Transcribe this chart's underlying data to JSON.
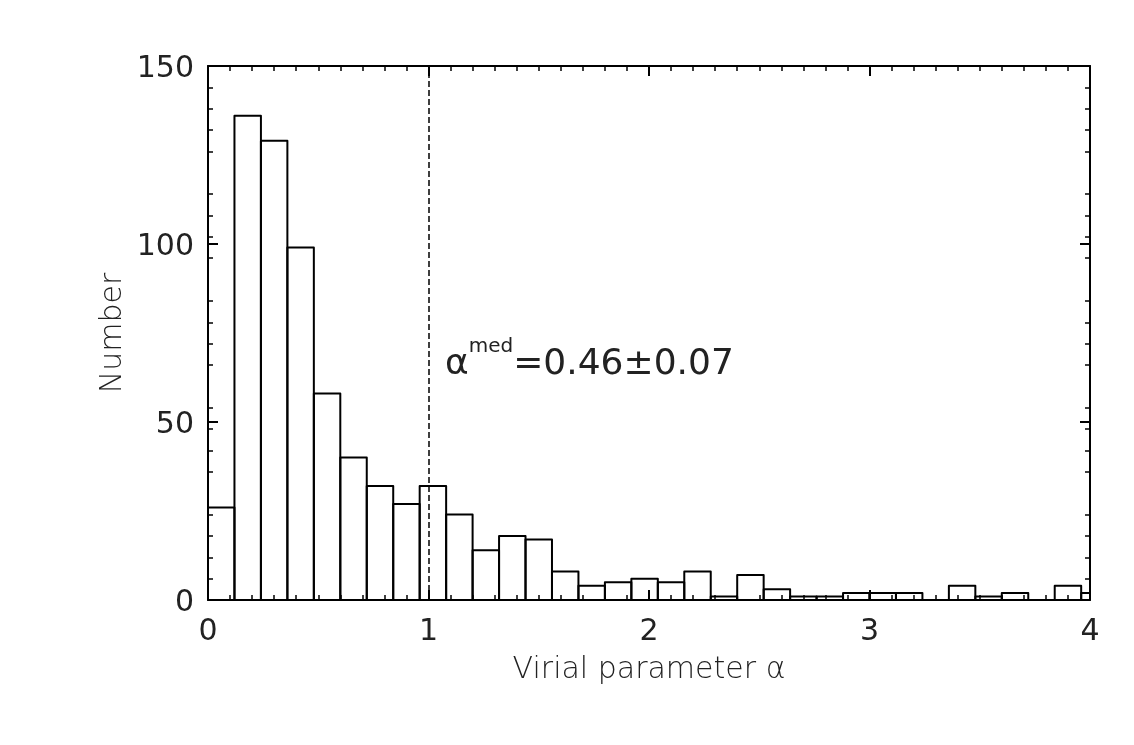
{
  "chart_data": {
    "type": "histogram",
    "xlabel": "Virial parameter α",
    "ylabel": "Number",
    "bins": [
      0,
      0.12,
      0.24,
      0.36,
      0.48,
      0.6,
      0.72,
      0.84,
      0.96,
      1.08,
      1.2,
      1.32,
      1.44,
      1.56,
      1.68,
      1.8,
      1.92,
      2.04,
      2.16,
      2.28,
      2.4,
      2.52,
      2.64,
      2.76,
      2.88,
      3.0,
      3.12,
      3.24,
      3.36,
      3.48,
      3.6,
      3.72,
      3.84,
      3.96,
      4.0
    ],
    "values": [
      26,
      136,
      129,
      99,
      58,
      40,
      32,
      27,
      32,
      24,
      14,
      18,
      17,
      8,
      4,
      5,
      6,
      5,
      8,
      1,
      7,
      3,
      1,
      1,
      2,
      2,
      2,
      0,
      4,
      1,
      2,
      0,
      4,
      2
    ],
    "color": "#000000",
    "xlim": [
      0,
      4
    ],
    "xticks": [
      0,
      1,
      2,
      3,
      4
    ],
    "ylim": [
      0,
      150
    ],
    "yticks": [
      0,
      50,
      100,
      150
    ],
    "ref_lines": [
      {
        "axis": "x",
        "value": 1,
        "line_style": "dashed"
      }
    ],
    "annotations": [
      "α$^{med}$=0.46±0.07"
    ],
    "grid": false
  }
}
